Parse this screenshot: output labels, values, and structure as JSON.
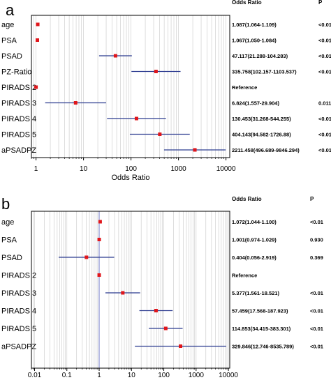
{
  "chart_data": [
    {
      "type": "forest",
      "panel_label": "a",
      "xlabel": "Odds Ratio",
      "scale": "log",
      "xlim": [
        0.8,
        12000
      ],
      "xticks": [
        "1",
        "10",
        "100",
        "1000",
        "10000"
      ],
      "header_or": "Odds Ratio",
      "header_p": "P",
      "ref_line": false,
      "rows": [
        {
          "label": "age",
          "or": 1.087,
          "lo": 1.064,
          "hi": 1.109,
          "text": "1.087(1.064-1.109)",
          "p": "<0.01"
        },
        {
          "label": "PSA",
          "or": 1.067,
          "lo": 1.05,
          "hi": 1.084,
          "text": "1.067(1.050-1.084)",
          "p": "<0.01"
        },
        {
          "label": "PSAD",
          "or": 47.117,
          "lo": 21.288,
          "hi": 104.283,
          "text": "47.117(21.288-104.283)",
          "p": "<0.01"
        },
        {
          "label": "PZ-Ratio",
          "or": 335.758,
          "lo": 102.157,
          "hi": 1103.537,
          "text": "335.758(102.157-1103.537)",
          "p": "<0.01"
        },
        {
          "label": "PIRADS 2",
          "or": 1,
          "lo": 1,
          "hi": 1,
          "text": "Reference",
          "p": ""
        },
        {
          "label": "PIRADS 3",
          "or": 6.824,
          "lo": 1.557,
          "hi": 29.904,
          "text": "6.824(1.557-29.904)",
          "p": "0.011"
        },
        {
          "label": "PIRADS 4",
          "or": 130.453,
          "lo": 31.268,
          "hi": 544.255,
          "text": "130.453(31.268-544.255)",
          "p": "<0.01"
        },
        {
          "label": "PIRADS 5",
          "or": 404.143,
          "lo": 94.582,
          "hi": 1726.88,
          "text": "404.143(94.582-1726.88)",
          "p": "<0.01"
        },
        {
          "label": "aPSADPZ",
          "or": 2211.458,
          "lo": 496.689,
          "hi": 9846.294,
          "text": "2211.458(496.689-9846.294)",
          "p": "<0.01"
        }
      ]
    },
    {
      "type": "forest",
      "panel_label": "b",
      "xlabel": "Odds Ratio",
      "scale": "log",
      "xlim": [
        0.008,
        11000
      ],
      "xticks": [
        "0.01",
        "0.1",
        "1",
        "10",
        "100",
        "1000",
        "10000"
      ],
      "header_or": "Odds Ratio",
      "header_p": "P",
      "ref_line": true,
      "rows": [
        {
          "label": "age",
          "or": 1.072,
          "lo": 1.044,
          "hi": 1.1,
          "text": "1.072(1.044-1.100)",
          "p": "<0.01"
        },
        {
          "label": "PSA",
          "or": 1.001,
          "lo": 0.974,
          "hi": 1.029,
          "text": "1.001(0.974-1.029)",
          "p": "0.930"
        },
        {
          "label": "PSAD",
          "or": 0.404,
          "lo": 0.056,
          "hi": 2.919,
          "text": "0.404(0.056-2.919)",
          "p": "0.369"
        },
        {
          "label": "PIRADS 2",
          "or": 1,
          "lo": 1,
          "hi": 1,
          "text": "Reference",
          "p": ""
        },
        {
          "label": "PIRADS 3",
          "or": 5.377,
          "lo": 1.561,
          "hi": 18.521,
          "text": "5.377(1.561-18.521)",
          "p": "<0.01"
        },
        {
          "label": "PIRADS 4",
          "or": 57.459,
          "lo": 17.568,
          "hi": 187.923,
          "text": "57.459(17.568-187.923)",
          "p": "<0.01"
        },
        {
          "label": "PIRADS 5",
          "or": 114.853,
          "lo": 34.415,
          "hi": 383.301,
          "text": "114.853(34.415-383.301)",
          "p": "<0.01"
        },
        {
          "label": "aPSADPZ",
          "or": 329.846,
          "lo": 12.746,
          "hi": 8535.789,
          "text": "329.846(12.746-8535.789)",
          "p": "<0.01"
        }
      ]
    }
  ],
  "colors": {
    "ci_line": "#2b3a8f",
    "marker": "#e0161b",
    "grid": "#d0d0d0",
    "ref_line": "#8a8fd0"
  }
}
